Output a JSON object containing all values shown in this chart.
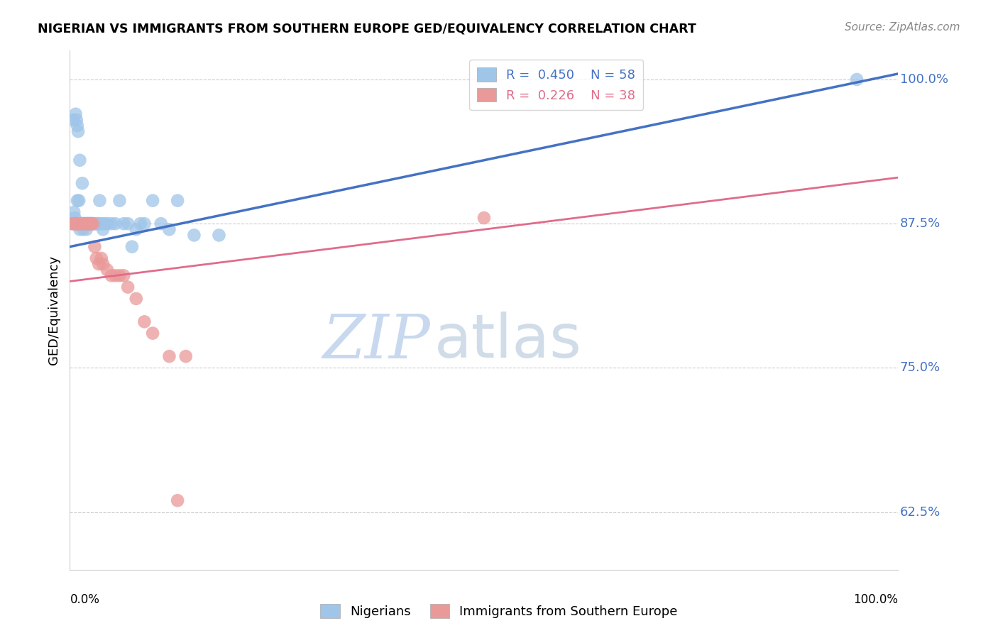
{
  "title": "NIGERIAN VS IMMIGRANTS FROM SOUTHERN EUROPE GED/EQUIVALENCY CORRELATION CHART",
  "source": "Source: ZipAtlas.com",
  "ylabel": "GED/Equivalency",
  "xlim": [
    0.0,
    1.0
  ],
  "ylim": [
    0.575,
    1.025
  ],
  "yticks": [
    0.625,
    0.75,
    0.875,
    1.0
  ],
  "ytick_labels": [
    "62.5%",
    "75.0%",
    "87.5%",
    "100.0%"
  ],
  "ytick_color": "#4472c4",
  "blue_color": "#9fc5e8",
  "pink_color": "#ea9999",
  "blue_line_color": "#4472c4",
  "pink_line_color": "#e06c8a",
  "legend_blue_label": "R =  0.450    N = 58",
  "legend_pink_label": "R =  0.226    N = 38",
  "legend_bottom_blue": "Nigerians",
  "legend_bottom_pink": "Immigrants from Southern Europe",
  "watermark_zip": "ZIP",
  "watermark_atlas": "atlas",
  "blue_line_x0": 0.0,
  "blue_line_y0": 0.855,
  "blue_line_x1": 1.0,
  "blue_line_y1": 1.005,
  "pink_line_x0": 0.0,
  "pink_line_y0": 0.825,
  "pink_line_x1": 1.0,
  "pink_line_y1": 0.915,
  "blue_x": [
    0.002,
    0.004,
    0.007,
    0.008,
    0.009,
    0.01,
    0.011,
    0.012,
    0.013,
    0.014,
    0.015,
    0.015,
    0.016,
    0.017,
    0.018,
    0.019,
    0.02,
    0.02,
    0.021,
    0.022,
    0.023,
    0.024,
    0.025,
    0.026,
    0.027,
    0.028,
    0.03,
    0.031,
    0.033,
    0.035,
    0.036,
    0.038,
    0.04,
    0.042,
    0.045,
    0.05,
    0.055,
    0.06,
    0.065,
    0.07,
    0.075,
    0.08,
    0.085,
    0.09,
    0.1,
    0.11,
    0.12,
    0.13,
    0.15,
    0.18,
    0.005,
    0.006,
    0.009,
    0.012,
    0.016,
    0.025,
    0.035,
    0.95
  ],
  "blue_y": [
    0.875,
    0.965,
    0.97,
    0.965,
    0.96,
    0.955,
    0.895,
    0.93,
    0.875,
    0.875,
    0.875,
    0.91,
    0.875,
    0.875,
    0.875,
    0.875,
    0.875,
    0.87,
    0.875,
    0.875,
    0.875,
    0.875,
    0.875,
    0.875,
    0.875,
    0.875,
    0.875,
    0.875,
    0.875,
    0.875,
    0.895,
    0.875,
    0.87,
    0.875,
    0.875,
    0.875,
    0.875,
    0.895,
    0.875,
    0.875,
    0.855,
    0.87,
    0.875,
    0.875,
    0.895,
    0.875,
    0.87,
    0.895,
    0.865,
    0.865,
    0.885,
    0.88,
    0.895,
    0.87,
    0.87,
    0.875,
    0.875,
    1.0
  ],
  "pink_x": [
    0.003,
    0.005,
    0.006,
    0.007,
    0.008,
    0.009,
    0.01,
    0.011,
    0.012,
    0.013,
    0.015,
    0.016,
    0.018,
    0.02,
    0.021,
    0.022,
    0.024,
    0.025,
    0.026,
    0.028,
    0.03,
    0.032,
    0.035,
    0.038,
    0.04,
    0.045,
    0.05,
    0.055,
    0.06,
    0.065,
    0.07,
    0.08,
    0.09,
    0.1,
    0.12,
    0.14,
    0.5,
    0.13
  ],
  "pink_y": [
    0.875,
    0.875,
    0.875,
    0.875,
    0.875,
    0.875,
    0.875,
    0.875,
    0.875,
    0.875,
    0.875,
    0.875,
    0.875,
    0.875,
    0.875,
    0.875,
    0.875,
    0.875,
    0.875,
    0.875,
    0.855,
    0.845,
    0.84,
    0.845,
    0.84,
    0.835,
    0.83,
    0.83,
    0.83,
    0.83,
    0.82,
    0.81,
    0.79,
    0.78,
    0.76,
    0.76,
    0.88,
    0.635
  ]
}
